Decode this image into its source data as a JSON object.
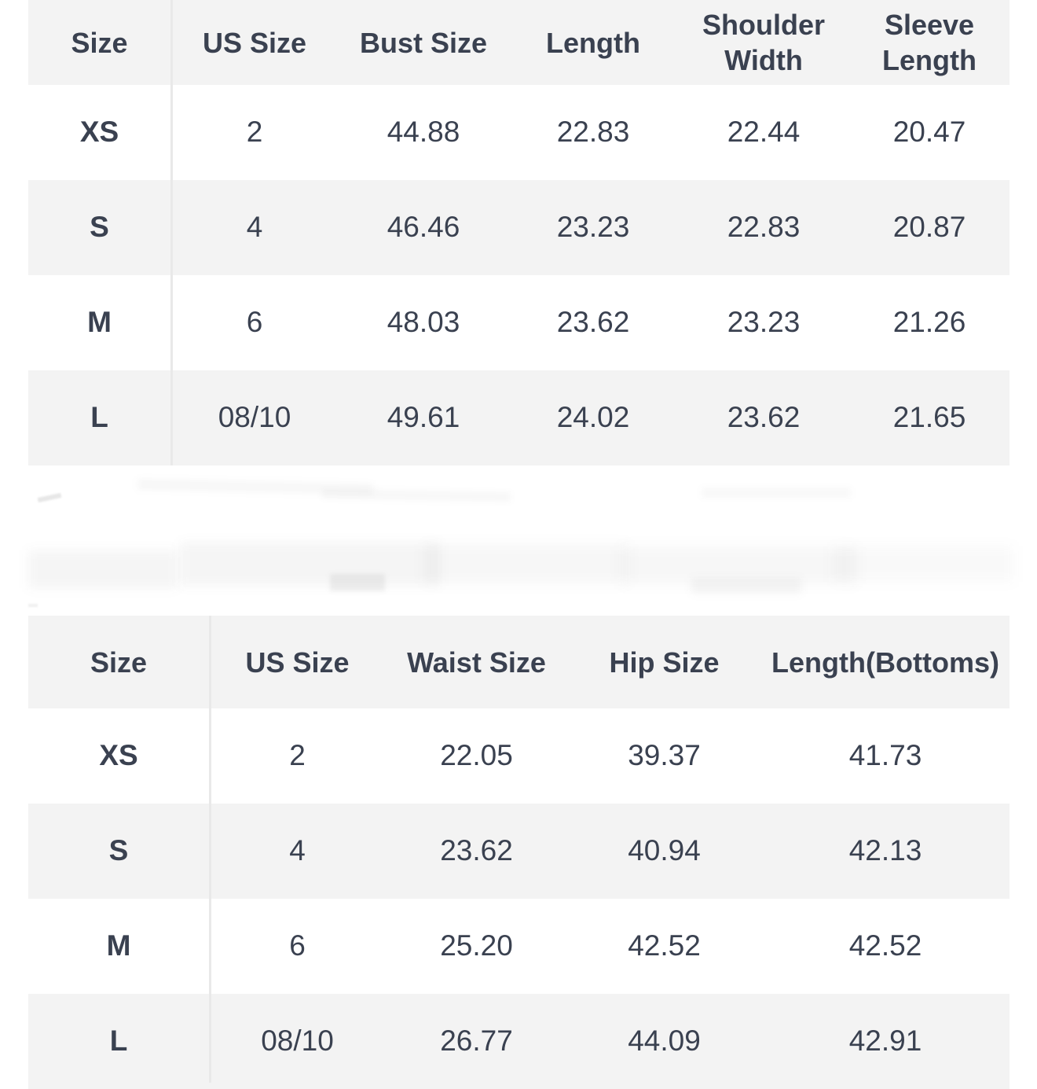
{
  "colors": {
    "background": "#ffffff",
    "header_bg": "#f3f3f3",
    "stripe_bg": "#f3f3f3",
    "text": "#3a4150",
    "divider": "#e9e9e9"
  },
  "tables": [
    {
      "id": "tops-size-chart",
      "columns": [
        "Size",
        "US Size",
        "Bust Size",
        "Length",
        "Shoulder Width",
        "Sleeve Length"
      ],
      "rows": [
        [
          "XS",
          "2",
          "44.88",
          "22.83",
          "22.44",
          "20.47"
        ],
        [
          "S",
          "4",
          "46.46",
          "23.23",
          "22.83",
          "20.87"
        ],
        [
          "M",
          "6",
          "48.03",
          "23.62",
          "23.23",
          "21.26"
        ],
        [
          "L",
          "08/10",
          "49.61",
          "24.02",
          "23.62",
          "21.65"
        ]
      ]
    },
    {
      "id": "bottoms-size-chart",
      "columns": [
        "Size",
        "US Size",
        "Waist Size",
        "Hip Size",
        "Length(Bottoms)"
      ],
      "rows": [
        [
          "XS",
          "2",
          "22.05",
          "39.37",
          "41.73"
        ],
        [
          "S",
          "4",
          "23.62",
          "40.94",
          "42.13"
        ],
        [
          "M",
          "6",
          "25.20",
          "42.52",
          "42.52"
        ],
        [
          "L",
          "08/10",
          "26.77",
          "44.09",
          "42.91"
        ]
      ]
    }
  ]
}
